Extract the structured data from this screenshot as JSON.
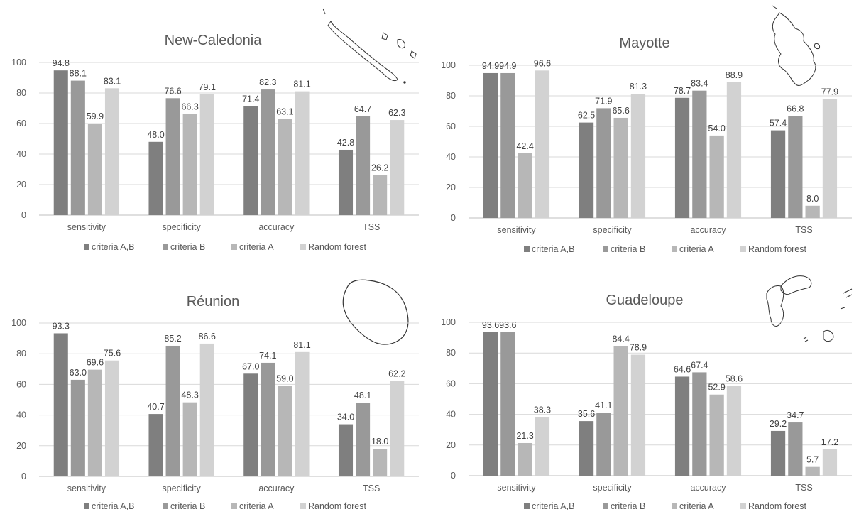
{
  "colors": {
    "criteria_ab": "#7f7f7f",
    "criteria_b": "#999999",
    "criteria_a": "#b7b7b7",
    "random_forest": "#d2d2d2",
    "gridline": "#d9d9d9",
    "axis": "#bfbfbf",
    "text": "#595959"
  },
  "chart_data": [
    {
      "type": "bar",
      "title": "New-Caledonia",
      "categories": [
        "sensitivity",
        "specificity",
        "accuracy",
        "TSS"
      ],
      "ylim": [
        0,
        100
      ],
      "yticks": [
        0,
        20,
        40,
        60,
        80,
        100
      ],
      "grid": true,
      "legend_position": "bottom",
      "map_icon": "new-caledonia-map-icon",
      "series": [
        {
          "name": "criteria A,B",
          "values": [
            94.8,
            48.0,
            71.4,
            42.8
          ],
          "labels": [
            "94.8",
            "48.0",
            "71.4",
            "42.8"
          ]
        },
        {
          "name": "criteria B",
          "values": [
            88.1,
            76.6,
            82.3,
            64.7
          ],
          "labels": [
            "88.1",
            "76.6",
            "82.3",
            "64.7"
          ]
        },
        {
          "name": "criteria A",
          "values": [
            59.9,
            66.3,
            63.1,
            26.2
          ],
          "labels": [
            "59.9",
            "66.3",
            "63.1",
            "26.2"
          ]
        },
        {
          "name": "Random forest",
          "values": [
            83.1,
            79.1,
            81.1,
            62.3
          ],
          "labels": [
            "83.1",
            "79.1",
            "81.1",
            "62.3"
          ]
        }
      ]
    },
    {
      "type": "bar",
      "title": "Mayotte",
      "categories": [
        "sensitivity",
        "specificity",
        "accuracy",
        "TSS"
      ],
      "ylim": [
        0,
        100
      ],
      "yticks": [
        0,
        20,
        40,
        60,
        80,
        100
      ],
      "grid": true,
      "legend_position": "bottom",
      "map_icon": "mayotte-map-icon",
      "series": [
        {
          "name": "criteria A,B",
          "values": [
            94.9,
            62.5,
            78.7,
            57.4
          ],
          "labels": [
            "94.9",
            "62.5",
            "78.7",
            "57.4"
          ]
        },
        {
          "name": "criteria B",
          "values": [
            94.9,
            71.9,
            83.4,
            66.8
          ],
          "labels": [
            "94.9",
            "71.9",
            "83.4",
            "66.8"
          ]
        },
        {
          "name": "criteria A",
          "values": [
            42.4,
            65.6,
            54.0,
            8.0
          ],
          "labels": [
            "42.4",
            "65.6",
            "54.0",
            "8.0"
          ]
        },
        {
          "name": "Random forest",
          "values": [
            96.6,
            81.3,
            88.9,
            77.9
          ],
          "labels": [
            "96.6",
            "81.3",
            "88.9",
            "77.9"
          ]
        }
      ]
    },
    {
      "type": "bar",
      "title": "Réunion",
      "categories": [
        "sensitivity",
        "specificity",
        "accuracy",
        "TSS"
      ],
      "ylim": [
        0,
        100
      ],
      "yticks": [
        0,
        20,
        40,
        60,
        80,
        100
      ],
      "grid": true,
      "legend_position": "bottom",
      "map_icon": "reunion-map-icon",
      "series": [
        {
          "name": "criteria A,B",
          "values": [
            93.3,
            40.7,
            67.0,
            34.0
          ],
          "labels": [
            "93.3",
            "40.7",
            "67.0",
            "34.0"
          ]
        },
        {
          "name": "criteria B",
          "values": [
            63.0,
            85.2,
            74.1,
            48.1
          ],
          "labels": [
            "63.0",
            "85.2",
            "74.1",
            "48.1"
          ]
        },
        {
          "name": "criteria A",
          "values": [
            69.6,
            48.3,
            59.0,
            18.0
          ],
          "labels": [
            "69.6",
            "48.3",
            "59.0",
            "18.0"
          ]
        },
        {
          "name": "Random forest",
          "values": [
            75.6,
            86.6,
            81.1,
            62.2
          ],
          "labels": [
            "75.6",
            "86.6",
            "81.1",
            "62.2"
          ]
        }
      ]
    },
    {
      "type": "bar",
      "title": "Guadeloupe",
      "categories": [
        "sensitivity",
        "specificity",
        "accuracy",
        "TSS"
      ],
      "ylim": [
        0,
        100
      ],
      "yticks": [
        0,
        20,
        40,
        60,
        80,
        100
      ],
      "grid": true,
      "legend_position": "bottom",
      "map_icon": "guadeloupe-map-icon",
      "series": [
        {
          "name": "criteria A,B",
          "values": [
            93.6,
            35.6,
            64.6,
            29.2
          ],
          "labels": [
            "93.6",
            "35.6",
            "64.6",
            "29.2"
          ]
        },
        {
          "name": "criteria B",
          "values": [
            93.6,
            41.1,
            67.4,
            34.7
          ],
          "labels": [
            "93.6",
            "41.1",
            "67.4",
            "34.7"
          ]
        },
        {
          "name": "criteria A",
          "values": [
            21.3,
            84.4,
            52.9,
            5.7
          ],
          "labels": [
            "21.3",
            "84.4",
            "52.9",
            "5.7"
          ]
        },
        {
          "name": "Random forest",
          "values": [
            38.3,
            78.9,
            58.6,
            17.2
          ],
          "labels": [
            "38.3",
            "78.9",
            "58.6",
            "17.2"
          ]
        }
      ]
    }
  ]
}
